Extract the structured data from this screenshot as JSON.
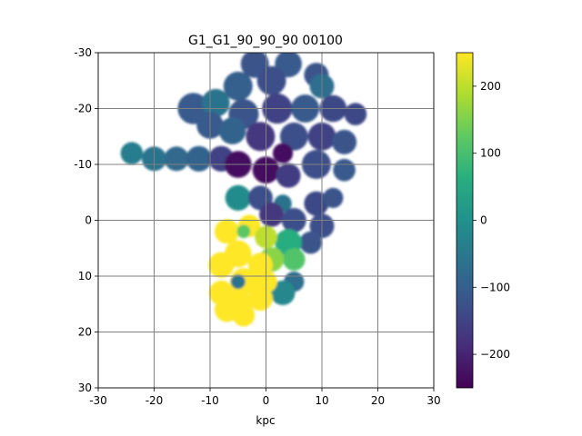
{
  "chart_data": {
    "type": "heatmap",
    "title": "G1_G1_90_90_90   00100",
    "xlabel": "kpc",
    "ylabel": "",
    "xlim": [
      -30,
      30
    ],
    "ylim": [
      -30,
      30
    ],
    "y_axis_inverted": true,
    "grid": true,
    "x_ticks": [
      "-30",
      "-20",
      "-10",
      "0",
      "10",
      "20",
      "30"
    ],
    "y_ticks": [
      "-30",
      "-20",
      "-10",
      "0",
      "10",
      "20",
      "30"
    ],
    "colorbar": {
      "colormap": "viridis",
      "range": [
        -250,
        250
      ],
      "ticks": [
        "200",
        "100",
        "0",
        "−100",
        "−200"
      ],
      "tick_values": [
        200,
        100,
        0,
        -100,
        -200
      ]
    },
    "blobs": [
      {
        "x": -2,
        "y": -28,
        "r": 2.5,
        "v": -120
      },
      {
        "x": 4,
        "y": -28,
        "r": 2.4,
        "v": -110
      },
      {
        "x": -5,
        "y": -24,
        "r": 2.6,
        "v": -100
      },
      {
        "x": 1,
        "y": -25,
        "r": 2.6,
        "v": -130
      },
      {
        "x": 9,
        "y": -26,
        "r": 2.2,
        "v": -120
      },
      {
        "x": -13,
        "y": -20,
        "r": 2.8,
        "v": -110
      },
      {
        "x": -9,
        "y": -21,
        "r": 2.5,
        "v": -60
      },
      {
        "x": -4,
        "y": -19,
        "r": 2.7,
        "v": -120
      },
      {
        "x": 2,
        "y": -20,
        "r": 2.7,
        "v": -150
      },
      {
        "x": 7,
        "y": -20,
        "r": 2.5,
        "v": -110
      },
      {
        "x": 10,
        "y": -24,
        "r": 2.2,
        "v": -70
      },
      {
        "x": 12,
        "y": -20,
        "r": 2.4,
        "v": -140
      },
      {
        "x": 16,
        "y": -19,
        "r": 2.0,
        "v": -140
      },
      {
        "x": -10,
        "y": -17,
        "r": 2.4,
        "v": -110
      },
      {
        "x": -6,
        "y": -16,
        "r": 2.4,
        "v": -90
      },
      {
        "x": -1,
        "y": -15,
        "r": 2.6,
        "v": -170
      },
      {
        "x": 5,
        "y": -15,
        "r": 2.5,
        "v": -130
      },
      {
        "x": 10,
        "y": -15,
        "r": 2.5,
        "v": -150
      },
      {
        "x": 14,
        "y": -14,
        "r": 2.2,
        "v": -120
      },
      {
        "x": -24,
        "y": -12,
        "r": 2.0,
        "v": -40
      },
      {
        "x": -20,
        "y": -11,
        "r": 2.2,
        "v": -60
      },
      {
        "x": -16,
        "y": -11,
        "r": 2.2,
        "v": -80
      },
      {
        "x": -12,
        "y": -11,
        "r": 2.3,
        "v": -90
      },
      {
        "x": -8,
        "y": -11,
        "r": 2.3,
        "v": -150
      },
      {
        "x": -5,
        "y": -10,
        "r": 2.4,
        "v": -230
      },
      {
        "x": 0,
        "y": -9,
        "r": 2.4,
        "v": -230
      },
      {
        "x": 3,
        "y": -12,
        "r": 1.8,
        "v": -230
      },
      {
        "x": 4,
        "y": -8,
        "r": 2.2,
        "v": -160
      },
      {
        "x": 9,
        "y": -10,
        "r": 2.6,
        "v": -130
      },
      {
        "x": 14,
        "y": -9,
        "r": 2.0,
        "v": -110
      },
      {
        "x": -5,
        "y": -4,
        "r": 2.3,
        "v": -10
      },
      {
        "x": -1,
        "y": -4,
        "r": 2.2,
        "v": -130
      },
      {
        "x": 3,
        "y": -3,
        "r": 1.6,
        "v": -60
      },
      {
        "x": 1,
        "y": -1,
        "r": 2.2,
        "v": -170
      },
      {
        "x": 5,
        "y": 0,
        "r": 2.2,
        "v": -130
      },
      {
        "x": 9,
        "y": -3,
        "r": 2.2,
        "v": -140
      },
      {
        "x": 12,
        "y": -4,
        "r": 1.8,
        "v": -120
      },
      {
        "x": 10,
        "y": 1,
        "r": 2.2,
        "v": -130
      },
      {
        "x": 8,
        "y": 4,
        "r": 2.0,
        "v": -120
      },
      {
        "x": 4,
        "y": 4,
        "r": 2.4,
        "v": 60
      },
      {
        "x": 5,
        "y": 7,
        "r": 2.0,
        "v": 110
      },
      {
        "x": 1,
        "y": 7,
        "r": 2.2,
        "v": 160
      },
      {
        "x": 5,
        "y": 11,
        "r": 1.8,
        "v": -70
      },
      {
        "x": 3,
        "y": 13,
        "r": 2.2,
        "v": -20
      },
      {
        "x": -1,
        "y": 14,
        "r": 2.2,
        "v": 250
      },
      {
        "x": -3,
        "y": 1,
        "r": 2.0,
        "v": 250
      },
      {
        "x": -7,
        "y": 2,
        "r": 2.2,
        "v": 250
      },
      {
        "x": 0,
        "y": 3,
        "r": 2.0,
        "v": 200
      },
      {
        "x": -5,
        "y": 6,
        "r": 2.4,
        "v": 250
      },
      {
        "x": -1,
        "y": 8,
        "r": 2.2,
        "v": 250
      },
      {
        "x": -8,
        "y": 8,
        "r": 2.3,
        "v": 250
      },
      {
        "x": -4,
        "y": 11,
        "r": 2.4,
        "v": 250
      },
      {
        "x": 0,
        "y": 11,
        "r": 2.0,
        "v": 250
      },
      {
        "x": -8,
        "y": 13,
        "r": 2.2,
        "v": 250
      },
      {
        "x": -5,
        "y": 15,
        "r": 2.4,
        "v": 250
      },
      {
        "x": -7,
        "y": 16,
        "r": 2.2,
        "v": 250
      },
      {
        "x": -4,
        "y": 17,
        "r": 2.0,
        "v": 250
      },
      {
        "x": -5,
        "y": 11,
        "r": 1.3,
        "v": -60
      },
      {
        "x": -4,
        "y": 2,
        "r": 1.2,
        "v": 120
      }
    ]
  }
}
